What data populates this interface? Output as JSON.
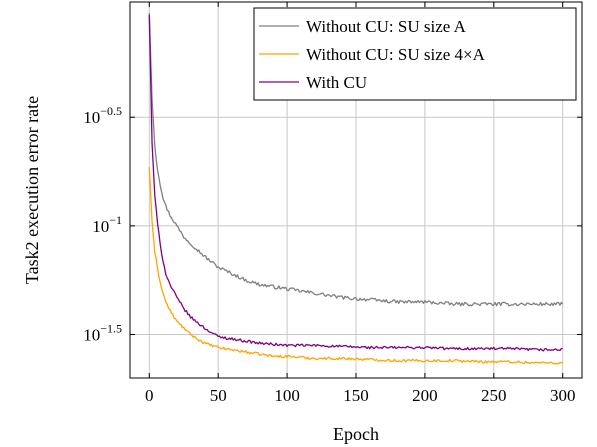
{
  "chart_data": {
    "type": "line",
    "xlabel": "Epoch",
    "ylabel": "Task2 execution error rate",
    "y_scale": "log10",
    "xlim": [
      -14,
      314
    ],
    "ylim": [
      -1.7,
      0.03
    ],
    "grid": true,
    "legend_position": "top-right",
    "x_ticks": [
      {
        "value": 0,
        "label": "0"
      },
      {
        "value": 50,
        "label": "50"
      },
      {
        "value": 100,
        "label": "100"
      },
      {
        "value": 150,
        "label": "150"
      },
      {
        "value": 200,
        "label": "200"
      },
      {
        "value": 250,
        "label": "250"
      },
      {
        "value": 300,
        "label": "300"
      }
    ],
    "y_ticks": [
      {
        "value": -0.5,
        "base": "10",
        "exp": "−0.5"
      },
      {
        "value": -1.0,
        "base": "10",
        "exp": "−1"
      },
      {
        "value": -1.5,
        "base": "10",
        "exp": "−1.5"
      }
    ],
    "series": [
      {
        "name": "Without CU: SU size A",
        "color": "#808080",
        "noise": 0.008,
        "x": [
          0,
          2,
          4,
          6,
          8,
          10,
          12,
          15,
          20,
          25,
          30,
          40,
          50,
          60,
          70,
          80,
          90,
          100,
          120,
          140,
          160,
          180,
          200,
          220,
          240,
          260,
          280,
          300
        ],
        "log10_y": [
          -0.02,
          -0.42,
          -0.63,
          -0.74,
          -0.81,
          -0.87,
          -0.91,
          -0.95,
          -1.0,
          -1.05,
          -1.08,
          -1.14,
          -1.19,
          -1.22,
          -1.25,
          -1.27,
          -1.28,
          -1.29,
          -1.31,
          -1.33,
          -1.34,
          -1.35,
          -1.35,
          -1.36,
          -1.36,
          -1.36,
          -1.36,
          -1.36
        ]
      },
      {
        "name": "Without CU: SU size 4×A",
        "color": "#FFA500",
        "noise": 0.006,
        "x": [
          0,
          2,
          4,
          6,
          8,
          10,
          12,
          15,
          20,
          25,
          30,
          40,
          50,
          60,
          70,
          80,
          90,
          100,
          120,
          140,
          160,
          180,
          200,
          220,
          240,
          260,
          280,
          300
        ],
        "log10_y": [
          -0.73,
          -0.98,
          -1.12,
          -1.2,
          -1.26,
          -1.31,
          -1.35,
          -1.39,
          -1.44,
          -1.47,
          -1.5,
          -1.54,
          -1.56,
          -1.57,
          -1.58,
          -1.59,
          -1.6,
          -1.6,
          -1.61,
          -1.61,
          -1.615,
          -1.62,
          -1.62,
          -1.62,
          -1.625,
          -1.625,
          -1.63,
          -1.63
        ]
      },
      {
        "name": "With CU",
        "color": "#800080",
        "noise": 0.006,
        "x": [
          0,
          2,
          4,
          6,
          8,
          10,
          12,
          15,
          20,
          25,
          30,
          40,
          50,
          60,
          70,
          80,
          90,
          100,
          120,
          140,
          160,
          180,
          200,
          220,
          240,
          260,
          280,
          300
        ],
        "log10_y": [
          -0.03,
          -0.62,
          -0.86,
          -0.99,
          -1.09,
          -1.16,
          -1.22,
          -1.27,
          -1.33,
          -1.38,
          -1.42,
          -1.47,
          -1.51,
          -1.52,
          -1.53,
          -1.54,
          -1.545,
          -1.55,
          -1.55,
          -1.555,
          -1.56,
          -1.56,
          -1.56,
          -1.565,
          -1.565,
          -1.565,
          -1.57,
          -1.57
        ]
      }
    ]
  }
}
